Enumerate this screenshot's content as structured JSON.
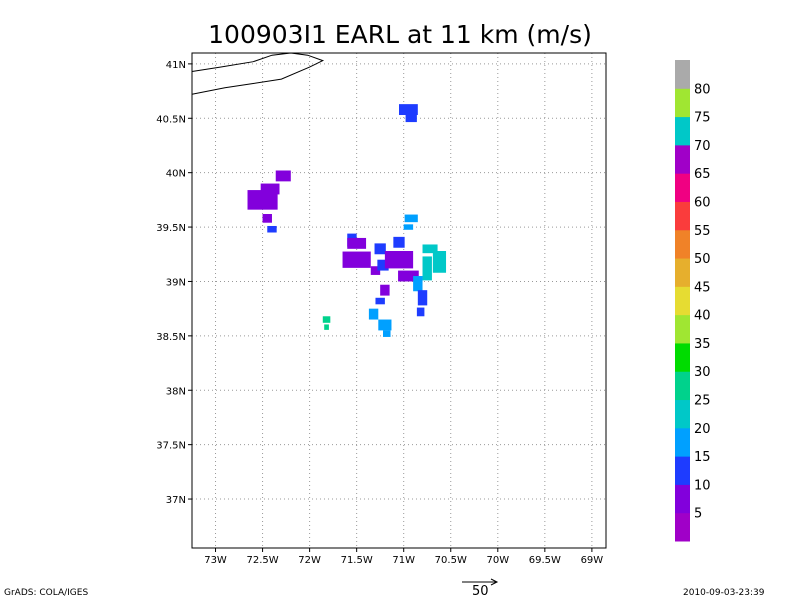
{
  "chart_data": {
    "type": "heatmap",
    "title": "100903I1 EARL at 11 km (m/s)",
    "xlabel": "",
    "ylabel": "",
    "xlim": [
      -73.25,
      -68.85
    ],
    "ylim": [
      36.55,
      41.1
    ],
    "x_ticks": [
      -73,
      -72.5,
      -72,
      -71.5,
      -71,
      -70.5,
      -70,
      -69.5,
      -69
    ],
    "x_tick_labels": [
      "73W",
      "72.5W",
      "72W",
      "71.5W",
      "71W",
      "70.5W",
      "70W",
      "69.5W",
      "69W"
    ],
    "y_ticks": [
      37,
      37.5,
      38,
      38.5,
      39,
      39.5,
      40,
      40.5,
      41
    ],
    "y_tick_labels": [
      "37N",
      "37.5N",
      "38N",
      "38.5N",
      "39N",
      "39.5N",
      "40N",
      "40.5N",
      "41N"
    ],
    "grid": true,
    "coastline": [
      [
        [
          -73.25,
          40.93
        ],
        [
          -72.95,
          40.97
        ],
        [
          -72.6,
          41.02
        ],
        [
          -72.4,
          41.08
        ],
        [
          -72.2,
          41.1
        ],
        [
          -72.02,
          41.08
        ],
        [
          -71.86,
          41.03
        ],
        [
          -72.0,
          40.97
        ],
        [
          -72.3,
          40.86
        ],
        [
          -72.6,
          40.82
        ],
        [
          -72.9,
          40.78
        ],
        [
          -73.25,
          40.72
        ]
      ]
    ],
    "colorbar": {
      "levels": [
        5,
        10,
        15,
        20,
        25,
        30,
        35,
        40,
        45,
        50,
        55,
        60,
        65,
        70,
        75,
        80
      ],
      "colors": [
        "#a000c8",
        "#8200dc",
        "#1e3cff",
        "#00a0ff",
        "#00c8c8",
        "#00d28c",
        "#00dc00",
        "#a0e632",
        "#e6dc32",
        "#e6af2d",
        "#f08228",
        "#fa3c3c",
        "#f00082",
        "#a000c8",
        "#00c8c8",
        "#a0e632",
        "#aaaaaa"
      ],
      "labels": [
        "5",
        "10",
        "15",
        "20",
        "25",
        "30",
        "35",
        "40",
        "45",
        "50",
        "55",
        "60",
        "65",
        "70",
        "75",
        "80"
      ]
    },
    "cells": [
      {
        "lon": -70.95,
        "lat": 40.58,
        "w": 0.2,
        "h": 0.1,
        "v": 12
      },
      {
        "lon": -70.92,
        "lat": 40.5,
        "w": 0.12,
        "h": 0.07,
        "v": 12
      },
      {
        "lon": -72.28,
        "lat": 39.97,
        "w": 0.16,
        "h": 0.1,
        "v": 6
      },
      {
        "lon": -72.42,
        "lat": 39.85,
        "w": 0.2,
        "h": 0.1,
        "v": 6
      },
      {
        "lon": -72.5,
        "lat": 39.75,
        "w": 0.32,
        "h": 0.18,
        "v": 6
      },
      {
        "lon": -72.45,
        "lat": 39.58,
        "w": 0.1,
        "h": 0.08,
        "v": 7
      },
      {
        "lon": -72.4,
        "lat": 39.48,
        "w": 0.1,
        "h": 0.06,
        "v": 12
      },
      {
        "lon": -71.82,
        "lat": 38.65,
        "w": 0.08,
        "h": 0.06,
        "v": 27
      },
      {
        "lon": -71.82,
        "lat": 38.58,
        "w": 0.05,
        "h": 0.05,
        "v": 27
      },
      {
        "lon": -71.55,
        "lat": 39.38,
        "w": 0.1,
        "h": 0.12,
        "v": 12
      },
      {
        "lon": -71.5,
        "lat": 39.35,
        "w": 0.2,
        "h": 0.1,
        "v": 8
      },
      {
        "lon": -71.5,
        "lat": 39.2,
        "w": 0.3,
        "h": 0.15,
        "v": 6
      },
      {
        "lon": -71.3,
        "lat": 39.1,
        "w": 0.1,
        "h": 0.08,
        "v": 8
      },
      {
        "lon": -71.25,
        "lat": 39.3,
        "w": 0.12,
        "h": 0.1,
        "v": 12
      },
      {
        "lon": -71.22,
        "lat": 39.15,
        "w": 0.12,
        "h": 0.1,
        "v": 12
      },
      {
        "lon": -71.05,
        "lat": 39.36,
        "w": 0.12,
        "h": 0.1,
        "v": 12
      },
      {
        "lon": -71.05,
        "lat": 39.2,
        "w": 0.3,
        "h": 0.16,
        "v": 8
      },
      {
        "lon": -70.95,
        "lat": 39.05,
        "w": 0.22,
        "h": 0.1,
        "v": 8
      },
      {
        "lon": -70.85,
        "lat": 38.98,
        "w": 0.1,
        "h": 0.14,
        "v": 18
      },
      {
        "lon": -70.8,
        "lat": 38.85,
        "w": 0.1,
        "h": 0.14,
        "v": 12
      },
      {
        "lon": -70.82,
        "lat": 38.72,
        "w": 0.08,
        "h": 0.08,
        "v": 12
      },
      {
        "lon": -70.75,
        "lat": 39.12,
        "w": 0.1,
        "h": 0.22,
        "v": 22
      },
      {
        "lon": -70.62,
        "lat": 39.18,
        "w": 0.14,
        "h": 0.2,
        "v": 23
      },
      {
        "lon": -70.72,
        "lat": 39.3,
        "w": 0.16,
        "h": 0.08,
        "v": 22
      },
      {
        "lon": -70.92,
        "lat": 39.58,
        "w": 0.14,
        "h": 0.07,
        "v": 18
      },
      {
        "lon": -70.95,
        "lat": 39.5,
        "w": 0.1,
        "h": 0.05,
        "v": 18
      },
      {
        "lon": -71.2,
        "lat": 38.92,
        "w": 0.1,
        "h": 0.1,
        "v": 8
      },
      {
        "lon": -71.25,
        "lat": 38.82,
        "w": 0.1,
        "h": 0.06,
        "v": 12
      },
      {
        "lon": -71.32,
        "lat": 38.7,
        "w": 0.1,
        "h": 0.1,
        "v": 18
      },
      {
        "lon": -71.2,
        "lat": 38.6,
        "w": 0.14,
        "h": 0.1,
        "v": 18
      },
      {
        "lon": -71.18,
        "lat": 38.52,
        "w": 0.08,
        "h": 0.06,
        "v": 18
      }
    ],
    "vector_reference": {
      "label": "50"
    }
  },
  "footer": {
    "left": "GrADS: COLA/IGES",
    "right": "2010-09-03-23:39"
  }
}
